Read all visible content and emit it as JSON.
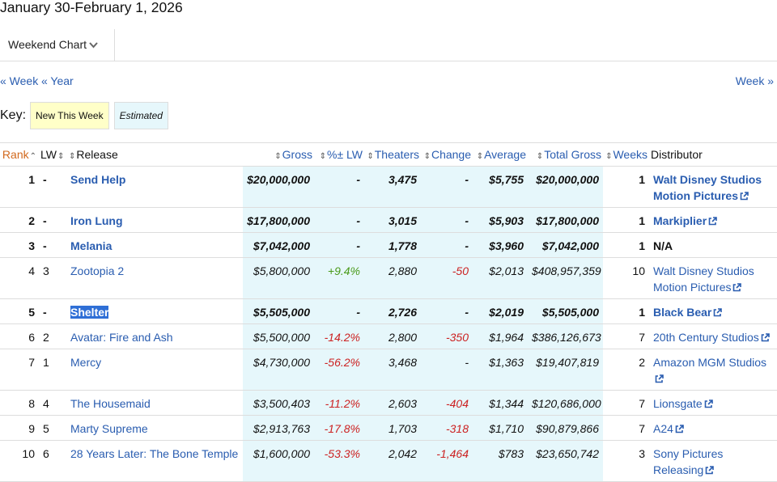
{
  "header": {
    "title": "January 30-February 1, 2026",
    "dropdown": "Weekend Chart"
  },
  "nav": {
    "prev_week": "« Week",
    "prev_year": "« Year",
    "next_week": "Week »"
  },
  "key": {
    "label": "Key:",
    "new": "New This Week",
    "estimated": "Estimated"
  },
  "table": {
    "columns": [
      "Rank",
      "LW",
      "Release",
      "Gross",
      "%± LW",
      "Theaters",
      "Change",
      "Average",
      "Total Gross",
      "Weeks",
      "Distributor"
    ],
    "rows": [
      {
        "cells": [
          "1",
          "-",
          "Send Help",
          "$20,000,000",
          "-",
          "3,475",
          "-",
          "$5,755",
          "$20,000,000",
          "1",
          "Walt Disney Studios Motion Pictures"
        ],
        "new": true,
        "external": true
      },
      {
        "cells": [
          "2",
          "-",
          "Iron Lung",
          "$17,800,000",
          "-",
          "3,015",
          "-",
          "$5,903",
          "$17,800,000",
          "1",
          "Markiplier"
        ],
        "new": true,
        "external": true
      },
      {
        "cells": [
          "3",
          "-",
          "Melania",
          "$7,042,000",
          "-",
          "1,778",
          "-",
          "$3,960",
          "$7,042,000",
          "1",
          "N/A"
        ],
        "new": true,
        "external": false
      },
      {
        "cells": [
          "4",
          "3",
          "Zootopia 2",
          "$5,800,000",
          "+9.4%",
          "2,880",
          "-50",
          "$2,013",
          "$408,957,359",
          "10",
          "Walt Disney Studios Motion Pictures"
        ],
        "new": false,
        "external": true,
        "pct_color": "#4a9a1a",
        "change_color": "#cc2222"
      },
      {
        "cells": [
          "5",
          "-",
          "Shelter",
          "$5,505,000",
          "-",
          "2,726",
          "-",
          "$2,019",
          "$5,505,000",
          "1",
          "Black Bear"
        ],
        "new": true,
        "external": true,
        "selected": true
      },
      {
        "cells": [
          "6",
          "2",
          "Avatar: Fire and Ash",
          "$5,500,000",
          "-14.2%",
          "2,800",
          "-350",
          "$1,964",
          "$386,126,673",
          "7",
          "20th Century Studios"
        ],
        "new": false,
        "external": true,
        "pct_color": "#cc2222",
        "change_color": "#cc2222"
      },
      {
        "cells": [
          "7",
          "1",
          "Mercy",
          "$4,730,000",
          "-56.2%",
          "3,468",
          "-",
          "$1,363",
          "$19,407,819",
          "2",
          "Amazon MGM Studios"
        ],
        "new": false,
        "external": true,
        "pct_color": "#cc2222"
      },
      {
        "cells": [
          "8",
          "4",
          "The Housemaid",
          "$3,500,403",
          "-11.2%",
          "2,603",
          "-404",
          "$1,344",
          "$120,686,000",
          "7",
          "Lionsgate"
        ],
        "new": false,
        "external": true,
        "pct_color": "#cc2222",
        "change_color": "#cc2222"
      },
      {
        "cells": [
          "9",
          "5",
          "Marty Supreme",
          "$2,913,763",
          "-17.8%",
          "1,703",
          "-318",
          "$1,710",
          "$90,879,866",
          "7",
          "A24"
        ],
        "new": false,
        "external": true,
        "pct_color": "#cc2222",
        "change_color": "#cc2222"
      },
      {
        "cells": [
          "10",
          "6",
          "28 Years Later: The Bone Temple",
          "$1,600,000",
          "-53.3%",
          "2,042",
          "-1,464",
          "$783",
          "$23,650,742",
          "3",
          "Sony Pictures Releasing"
        ],
        "new": false,
        "external": true,
        "pct_color": "#cc2222",
        "change_color": "#cc2222"
      }
    ]
  }
}
